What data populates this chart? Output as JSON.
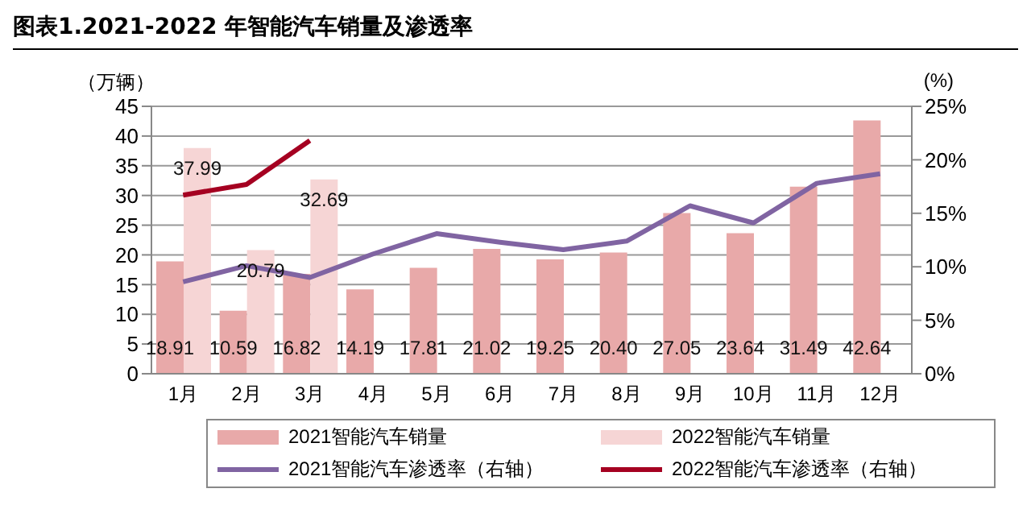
{
  "chart_data": {
    "type": "bar",
    "title": "图表1.2021-2022 年智能汽车销量及渗透率",
    "ylabel": "（万辆）",
    "y2label": "(%)",
    "categories": [
      "1月",
      "2月",
      "3月",
      "4月",
      "5月",
      "6月",
      "7月",
      "8月",
      "9月",
      "10月",
      "11月",
      "12月"
    ],
    "series": [
      {
        "name": "2021智能汽车销量",
        "color": "#e8a9a9",
        "values": [
          18.91,
          10.59,
          16.82,
          14.19,
          17.81,
          21.02,
          19.25,
          20.4,
          27.05,
          23.64,
          31.49,
          42.64
        ],
        "value_labels": [
          "18.91",
          "10.59",
          "16.82",
          "14.19",
          "17.81",
          "21.02",
          "19.25",
          "20.40",
          "27.05",
          "23.64",
          "31.49",
          "42.64"
        ]
      },
      {
        "name": "2022智能汽车销量",
        "color": "#f6d5d5",
        "values": [
          37.99,
          20.79,
          32.69,
          null,
          null,
          null,
          null,
          null,
          null,
          null,
          null,
          null
        ],
        "value_labels": [
          "37.99",
          "20.79",
          "32.69",
          null,
          null,
          null,
          null,
          null,
          null,
          null,
          null,
          null
        ]
      },
      {
        "name": "2021智能汽车渗透率（右轴）",
        "type": "line",
        "axis": "y2",
        "color": "#8064a2",
        "values": [
          8.6,
          10.1,
          9.0,
          11.2,
          13.1,
          12.3,
          11.6,
          12.4,
          15.7,
          14.1,
          17.8,
          18.7
        ]
      },
      {
        "name": "2022智能汽车渗透率（右轴）",
        "type": "line",
        "axis": "y2",
        "color": "#a50021",
        "values": [
          16.7,
          17.7,
          21.8,
          null,
          null,
          null,
          null,
          null,
          null,
          null,
          null,
          null
        ]
      }
    ],
    "ylim": [
      0,
      45
    ],
    "yticks": [
      0,
      5,
      10,
      15,
      20,
      25,
      30,
      35,
      40,
      45
    ],
    "y2lim": [
      0,
      25
    ],
    "y2ticks": [
      {
        "value": 0,
        "label": "0%"
      },
      {
        "value": 5,
        "label": "5%"
      },
      {
        "value": 10,
        "label": "10%"
      },
      {
        "value": 15,
        "label": "15%"
      },
      {
        "value": 20,
        "label": "20%"
      },
      {
        "value": 25,
        "label": "25%"
      }
    ],
    "grid": "y",
    "legend": "bottom",
    "marker": "none",
    "line_style": "solid"
  }
}
